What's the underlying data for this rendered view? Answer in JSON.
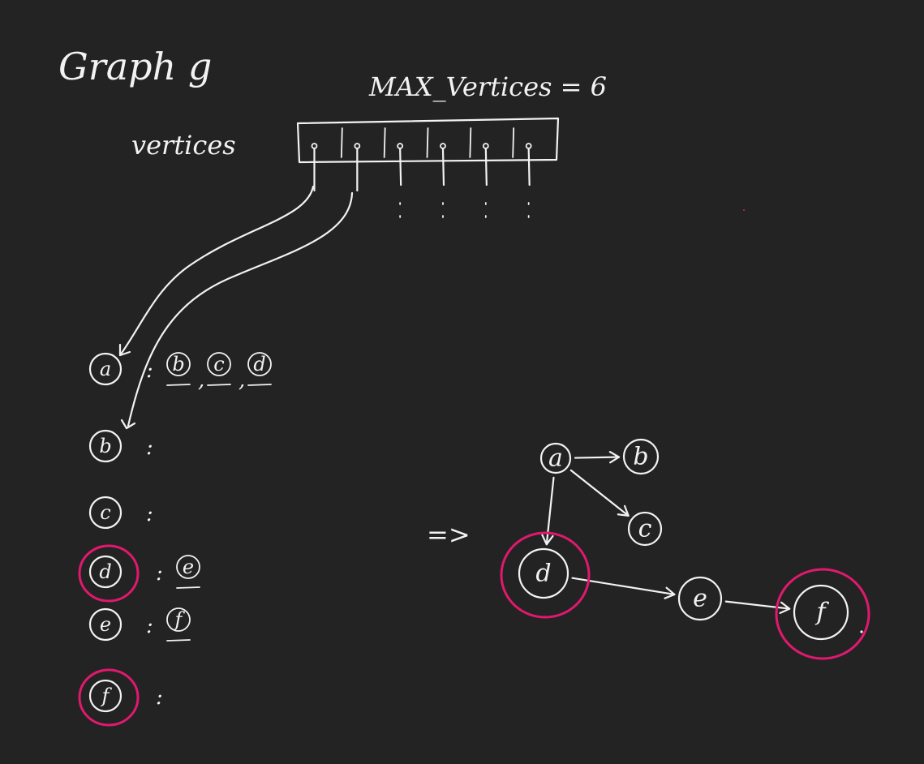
{
  "title": "Graph g",
  "max_label": "MAX_Vertices = 6",
  "vertices_label": "vertices",
  "highlight_color": "#e0196e",
  "ink_color": "#f2f2f2",
  "background": "#232323",
  "array_slots": 6,
  "adjacency_list": [
    {
      "vertex": "a",
      "neighbors": [
        "b",
        "c",
        "d"
      ],
      "highlighted": false
    },
    {
      "vertex": "b",
      "neighbors": [],
      "highlighted": false
    },
    {
      "vertex": "c",
      "neighbors": [],
      "highlighted": false
    },
    {
      "vertex": "d",
      "neighbors": [
        "e"
      ],
      "highlighted": true
    },
    {
      "vertex": "e",
      "neighbors": [
        "f"
      ],
      "highlighted": false
    },
    {
      "vertex": "f",
      "neighbors": [],
      "highlighted": true
    }
  ],
  "implies_symbol": "=>",
  "graph": {
    "nodes": [
      {
        "id": "a",
        "highlighted": false
      },
      {
        "id": "b",
        "highlighted": false
      },
      {
        "id": "c",
        "highlighted": false
      },
      {
        "id": "d",
        "highlighted": true
      },
      {
        "id": "e",
        "highlighted": false
      },
      {
        "id": "f",
        "highlighted": true
      }
    ],
    "edges": [
      {
        "from": "a",
        "to": "b"
      },
      {
        "from": "a",
        "to": "c"
      },
      {
        "from": "a",
        "to": "d"
      },
      {
        "from": "d",
        "to": "e"
      },
      {
        "from": "e",
        "to": "f"
      }
    ]
  }
}
